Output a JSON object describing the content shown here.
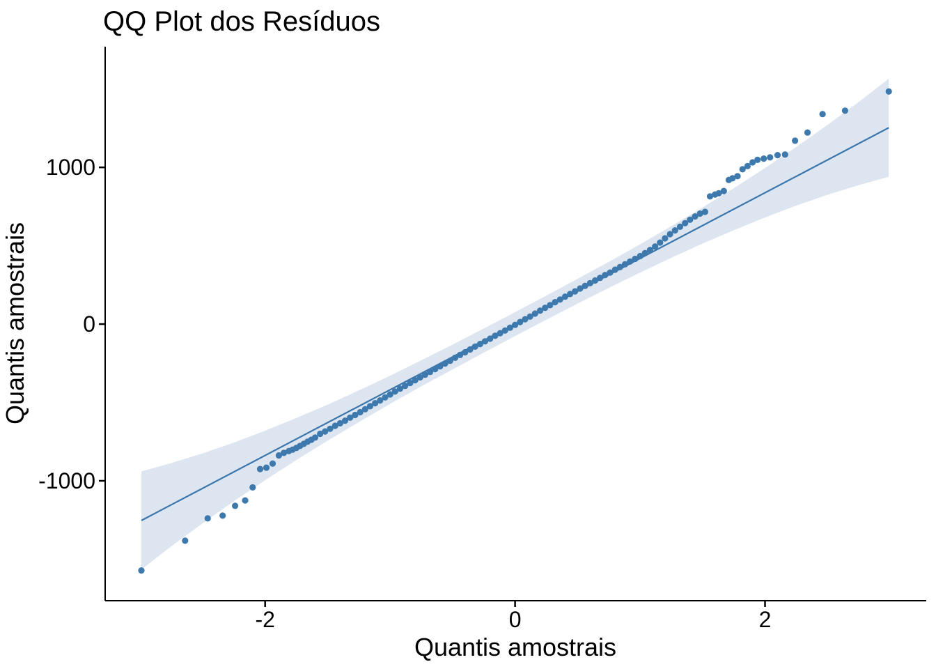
{
  "chart_data": {
    "type": "scatter",
    "title": "QQ Plot dos Resíduos",
    "xlabel": "Quantis amostrais",
    "ylabel": "Quantis amostrais",
    "legend": "none",
    "grid": false,
    "xlim": [
      -3.28,
      3.29
    ],
    "ylim": [
      -1765,
      1770
    ],
    "x_ticks": [
      -2,
      0,
      2
    ],
    "y_ticks": [
      -1000,
      0,
      1000
    ],
    "colors": {
      "point": "#3E79AE",
      "line": "#3A76AC",
      "band": "#DCE5F0",
      "axis": "#000000",
      "text": "#000000",
      "background": "#FFFFFF"
    },
    "qq_line": {
      "x1": -2.99,
      "y1": -1253,
      "x2": 2.99,
      "y2": 1253
    },
    "band": {
      "x": [
        -2.99,
        -2.75,
        -2.5,
        -2.25,
        -2.0,
        -1.75,
        -1.5,
        -1.25,
        -1.0,
        -0.75,
        -0.5,
        -0.25,
        0,
        0.25,
        0.5,
        0.75,
        1.0,
        1.25,
        1.5,
        1.75,
        2.0,
        2.25,
        2.5,
        2.75,
        2.99
      ],
      "upper": [
        -940,
        -887,
        -825,
        -756,
        -680,
        -599,
        -514,
        -423,
        -329,
        -231,
        -131,
        -28,
        76,
        182,
        289,
        397,
        509,
        625,
        744,
        867,
        996,
        1130,
        1271,
        1417,
        1566
      ],
      "lower": [
        -1566,
        -1417,
        -1271,
        -1130,
        -996,
        -867,
        -744,
        -625,
        -509,
        -397,
        -289,
        -182,
        -76,
        28,
        131,
        231,
        329,
        423,
        514,
        599,
        680,
        756,
        825,
        887,
        940
      ]
    },
    "points": [
      [
        -2.99,
        -1572
      ],
      [
        -2.64,
        -1382
      ],
      [
        -2.46,
        -1240
      ],
      [
        -2.34,
        -1222
      ],
      [
        -2.24,
        -1160
      ],
      [
        -2.16,
        -1125
      ],
      [
        -2.1,
        -1042
      ],
      [
        -2.04,
        -925
      ],
      [
        -1.99,
        -916
      ],
      [
        -1.94,
        -890
      ],
      [
        -1.89,
        -838
      ],
      [
        -1.85,
        -822
      ],
      [
        -1.81,
        -810
      ],
      [
        -1.78,
        -801
      ],
      [
        -1.75,
        -790
      ],
      [
        -1.72,
        -777
      ],
      [
        -1.69,
        -764
      ],
      [
        -1.66,
        -750
      ],
      [
        -1.63,
        -738
      ],
      [
        -1.6,
        -724
      ],
      [
        -1.56,
        -700
      ],
      [
        -1.52,
        -685
      ],
      [
        -1.48,
        -668
      ],
      [
        -1.44,
        -649
      ],
      [
        -1.4,
        -633
      ],
      [
        -1.36,
        -616
      ],
      [
        -1.32,
        -597
      ],
      [
        -1.28,
        -580
      ],
      [
        -1.24,
        -562
      ],
      [
        -1.2,
        -543
      ],
      [
        -1.16,
        -524
      ],
      [
        -1.12,
        -505
      ],
      [
        -1.08,
        -487
      ],
      [
        -1.04,
        -468
      ],
      [
        -1.0,
        -449
      ],
      [
        -0.96,
        -430
      ],
      [
        -0.92,
        -412
      ],
      [
        -0.88,
        -394
      ],
      [
        -0.84,
        -376
      ],
      [
        -0.8,
        -358
      ],
      [
        -0.76,
        -340
      ],
      [
        -0.72,
        -323
      ],
      [
        -0.68,
        -305
      ],
      [
        -0.64,
        -287
      ],
      [
        -0.6,
        -269
      ],
      [
        -0.56,
        -252
      ],
      [
        -0.52,
        -234
      ],
      [
        -0.48,
        -215
      ],
      [
        -0.44,
        -197
      ],
      [
        -0.4,
        -180
      ],
      [
        -0.36,
        -162
      ],
      [
        -0.32,
        -144
      ],
      [
        -0.28,
        -127
      ],
      [
        -0.24,
        -110
      ],
      [
        -0.2,
        -93
      ],
      [
        -0.16,
        -75
      ],
      [
        -0.12,
        -58
      ],
      [
        -0.08,
        -41
      ],
      [
        -0.04,
        -23
      ],
      [
        0.0,
        -5
      ],
      [
        0.04,
        13
      ],
      [
        0.08,
        31
      ],
      [
        0.12,
        48
      ],
      [
        0.16,
        67
      ],
      [
        0.2,
        86
      ],
      [
        0.24,
        104
      ],
      [
        0.28,
        121
      ],
      [
        0.32,
        140
      ],
      [
        0.36,
        157
      ],
      [
        0.4,
        175
      ],
      [
        0.44,
        192
      ],
      [
        0.48,
        209
      ],
      [
        0.52,
        227
      ],
      [
        0.56,
        244
      ],
      [
        0.6,
        261
      ],
      [
        0.64,
        278
      ],
      [
        0.68,
        295
      ],
      [
        0.72,
        313
      ],
      [
        0.76,
        329
      ],
      [
        0.8,
        347
      ],
      [
        0.84,
        364
      ],
      [
        0.88,
        382
      ],
      [
        0.92,
        399
      ],
      [
        0.96,
        416
      ],
      [
        1.0,
        434
      ],
      [
        1.04,
        453
      ],
      [
        1.08,
        473
      ],
      [
        1.12,
        495
      ],
      [
        1.16,
        520
      ],
      [
        1.2,
        547
      ],
      [
        1.24,
        574
      ],
      [
        1.28,
        598
      ],
      [
        1.32,
        621
      ],
      [
        1.36,
        644
      ],
      [
        1.4,
        666
      ],
      [
        1.44,
        687
      ],
      [
        1.48,
        705
      ],
      [
        1.52,
        716
      ],
      [
        1.56,
        815
      ],
      [
        1.6,
        827
      ],
      [
        1.63,
        835
      ],
      [
        1.67,
        849
      ],
      [
        1.71,
        920
      ],
      [
        1.74,
        930
      ],
      [
        1.78,
        944
      ],
      [
        1.82,
        988
      ],
      [
        1.86,
        1008
      ],
      [
        1.9,
        1032
      ],
      [
        1.94,
        1048
      ],
      [
        1.99,
        1056
      ],
      [
        2.04,
        1064
      ],
      [
        2.1,
        1078
      ],
      [
        2.16,
        1082
      ],
      [
        2.24,
        1170
      ],
      [
        2.34,
        1222
      ],
      [
        2.46,
        1340
      ],
      [
        2.64,
        1362
      ],
      [
        2.99,
        1484
      ]
    ]
  }
}
